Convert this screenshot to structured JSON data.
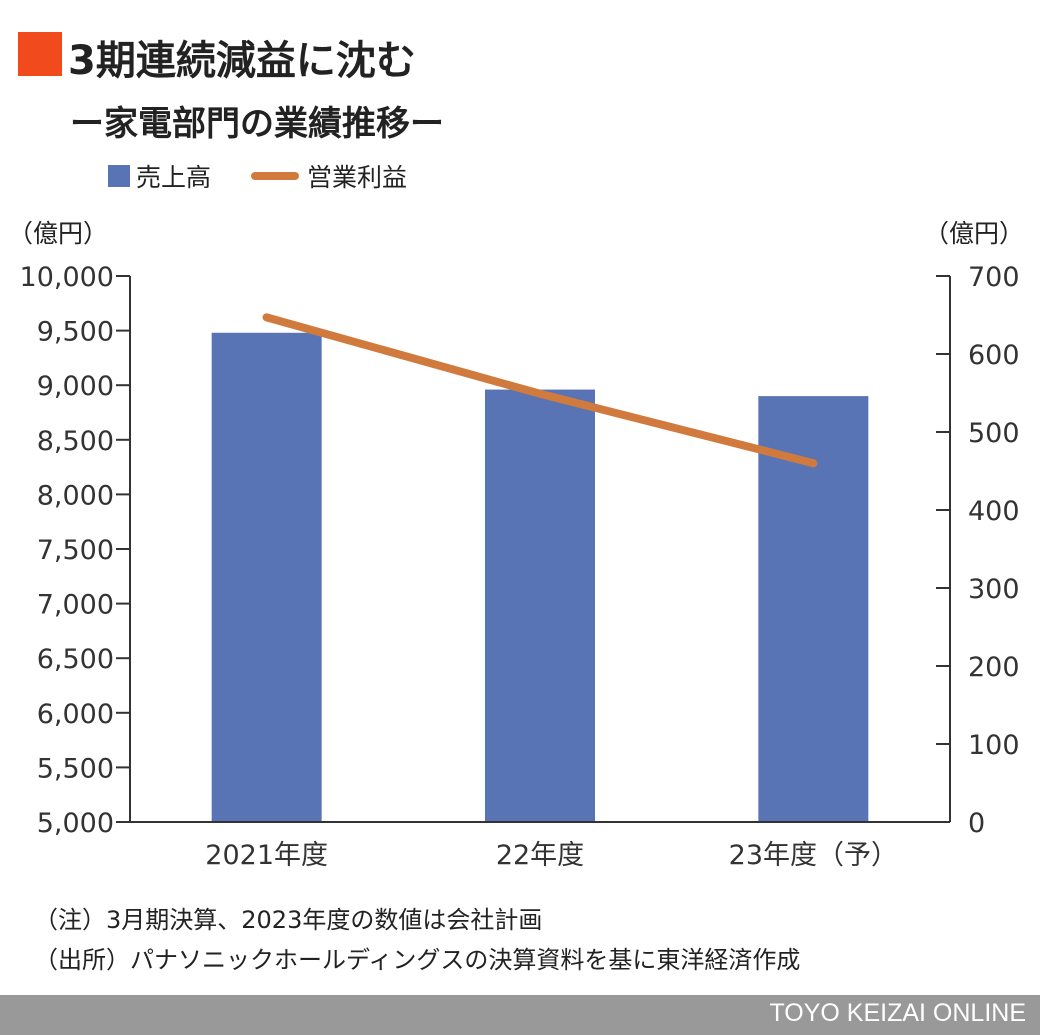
{
  "header": {
    "title": "3期連続減益に沈む",
    "subtitle": "ー家電部門の業績推移ー",
    "accent_color": "#f04a1d"
  },
  "chart_data": {
    "type": "bar+line",
    "categories": [
      "2021年度",
      "22年度",
      "23年度（予）"
    ],
    "series": [
      {
        "name": "売上高",
        "type": "bar",
        "axis": "left",
        "color": "#5874b4",
        "values": [
          9480,
          8960,
          8900
        ]
      },
      {
        "name": "営業利益",
        "type": "line",
        "axis": "right",
        "color": "#d07a3e",
        "values": [
          647,
          549,
          460
        ]
      }
    ],
    "y_left": {
      "unit": "（億円）",
      "min": 5000,
      "max": 10000,
      "ticks": [
        "5,000",
        "5,500",
        "6,000",
        "6,500",
        "7,000",
        "7,500",
        "8,000",
        "8,500",
        "9,000",
        "9,500",
        "10,000"
      ]
    },
    "y_right": {
      "unit": "（億円）",
      "min": 0,
      "max": 700,
      "ticks": [
        "0",
        "100",
        "200",
        "300",
        "400",
        "500",
        "600",
        "700"
      ]
    },
    "legend_position": "top-left",
    "grid": false
  },
  "notes": {
    "note1": "（注）3月期決算、2023年度の数値は会社計画",
    "note2": "（出所）パナソニックホールディングスの決算資料を基に東洋経済作成"
  },
  "footer": {
    "brand": "TOYO KEIZAI ONLINE"
  }
}
